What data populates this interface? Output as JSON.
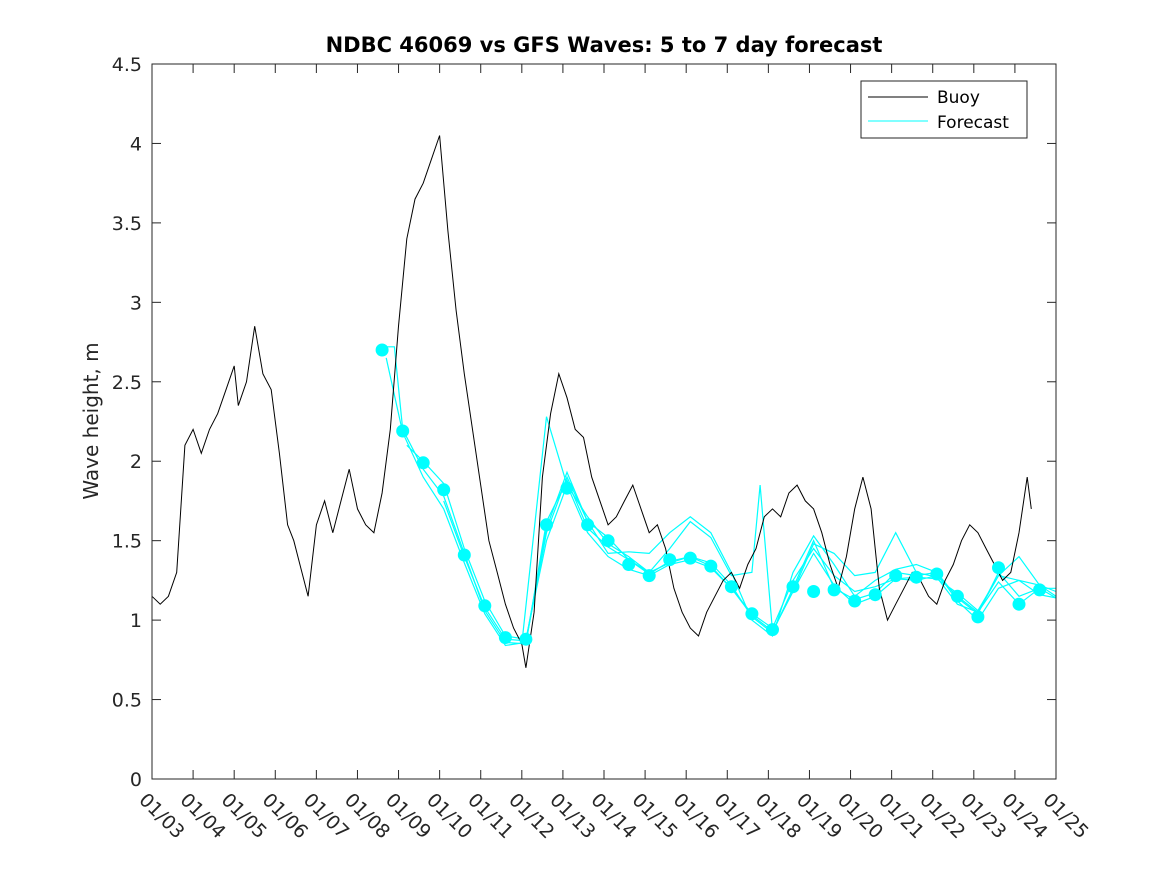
{
  "chart_data": {
    "type": "line",
    "title": "NDBC 46069 vs GFS Waves: 5 to 7 day forecast",
    "xlabel": "",
    "ylabel": "Wave height, m",
    "xlim": [
      0,
      22
    ],
    "ylim": [
      0,
      4.5
    ],
    "x_tick_values": [
      0,
      1,
      2,
      3,
      4,
      5,
      6,
      7,
      8,
      9,
      10,
      11,
      12,
      13,
      14,
      15,
      16,
      17,
      18,
      19,
      20,
      21,
      22
    ],
    "x_tick_labels": [
      "01/03",
      "01/04",
      "01/05",
      "01/06",
      "01/07",
      "01/08",
      "01/09",
      "01/10",
      "01/11",
      "01/12",
      "01/13",
      "01/14",
      "01/15",
      "01/16",
      "01/17",
      "01/18",
      "01/19",
      "01/20",
      "01/21",
      "01/22",
      "01/23",
      "01/24",
      "01/25"
    ],
    "y_tick_values": [
      0,
      0.5,
      1,
      1.5,
      2,
      2.5,
      3,
      3.5,
      4,
      4.5
    ],
    "y_tick_labels": [
      "0",
      "0.5",
      "1",
      "1.5",
      "2",
      "2.5",
      "3",
      "3.5",
      "4",
      "4.5"
    ],
    "legend": {
      "position": "top-right",
      "entries": [
        "Buoy",
        "Forecast"
      ]
    },
    "colors": {
      "buoy": "#000000",
      "forecast": "#00ffff",
      "axes": "#262626"
    },
    "buoy": {
      "name": "Buoy",
      "x": [
        0,
        0.2,
        0.4,
        0.6,
        0.8,
        1.0,
        1.2,
        1.4,
        1.6,
        1.8,
        2.0,
        2.1,
        2.3,
        2.5,
        2.7,
        2.9,
        3.1,
        3.3,
        3.45,
        3.6,
        3.8,
        4.0,
        4.2,
        4.4,
        4.6,
        4.8,
        5.0,
        5.2,
        5.4,
        5.6,
        5.8,
        6.0,
        6.2,
        6.4,
        6.6,
        6.8,
        7.0,
        7.2,
        7.4,
        7.6,
        7.8,
        8.0,
        8.2,
        8.4,
        8.6,
        8.8,
        9.0,
        9.1,
        9.3,
        9.5,
        9.7,
        9.9,
        10.1,
        10.3,
        10.5,
        10.7,
        10.9,
        11.1,
        11.3,
        11.5,
        11.7,
        11.9,
        12.1,
        12.3,
        12.5,
        12.7,
        12.9,
        13.1,
        13.3,
        13.5,
        13.7,
        13.9,
        14.1,
        14.3,
        14.5,
        14.7,
        14.9,
        15.1,
        15.3,
        15.5,
        15.7,
        15.9,
        16.1,
        16.3,
        16.5,
        16.7,
        16.9,
        17.1,
        17.3,
        17.5,
        17.7,
        17.9,
        18.1,
        18.3,
        18.5,
        18.7,
        18.9,
        19.1,
        19.3,
        19.5,
        19.7,
        19.9,
        20.1,
        20.3,
        20.5,
        20.7,
        20.9,
        21.1,
        21.3,
        21.4
      ],
      "values": [
        1.15,
        1.1,
        1.15,
        1.3,
        2.1,
        2.2,
        2.05,
        2.2,
        2.3,
        2.45,
        2.6,
        2.35,
        2.5,
        2.85,
        2.55,
        2.45,
        2.05,
        1.6,
        1.5,
        1.35,
        1.15,
        1.6,
        1.75,
        1.55,
        1.75,
        1.95,
        1.7,
        1.6,
        1.55,
        1.8,
        2.2,
        2.85,
        3.4,
        3.65,
        3.75,
        3.9,
        4.05,
        3.45,
        2.95,
        2.55,
        2.2,
        1.85,
        1.5,
        1.3,
        1.1,
        0.95,
        0.85,
        0.7,
        1.05,
        1.9,
        2.3,
        2.55,
        2.4,
        2.2,
        2.15,
        1.9,
        1.75,
        1.6,
        1.65,
        1.75,
        1.85,
        1.7,
        1.55,
        1.6,
        1.45,
        1.2,
        1.05,
        0.95,
        0.9,
        1.05,
        1.15,
        1.25,
        1.3,
        1.2,
        1.35,
        1.45,
        1.65,
        1.7,
        1.65,
        1.8,
        1.85,
        1.75,
        1.7,
        1.55,
        1.35,
        1.2,
        1.4,
        1.7,
        1.9,
        1.7,
        1.2,
        1.0,
        1.1,
        1.2,
        1.3,
        1.25,
        1.15,
        1.1,
        1.25,
        1.35,
        1.5,
        1.6,
        1.55,
        1.45,
        1.35,
        1.25,
        1.3,
        1.55,
        1.9,
        1.7
      ]
    },
    "forecast_markers": {
      "name": "Forecast",
      "x": [
        5.6,
        6.1,
        6.6,
        7.1,
        7.6,
        8.1,
        8.6,
        9.1,
        9.6,
        10.1,
        10.6,
        11.1,
        11.6,
        12.1,
        12.6,
        13.1,
        13.6,
        14.1,
        14.6,
        15.1,
        15.6,
        16.1,
        16.6,
        17.1,
        17.6,
        18.1,
        18.6,
        19.1,
        19.6,
        20.1,
        20.6,
        21.1,
        21.6
      ],
      "values": [
        2.7,
        2.19,
        1.99,
        1.82,
        1.41,
        1.09,
        0.89,
        0.88,
        1.6,
        1.83,
        1.6,
        1.5,
        1.35,
        1.28,
        1.38,
        1.39,
        1.34,
        1.21,
        1.04,
        0.94,
        1.21,
        1.18,
        1.19,
        1.12,
        1.16,
        1.28,
        1.27,
        1.29,
        1.15,
        1.02,
        1.33,
        1.1,
        1.19
      ]
    },
    "forecast_lines": [
      {
        "name": "Forecast",
        "x": [
          5.6,
          5.9,
          6.1,
          6.6,
          7.1,
          7.6,
          8.1,
          8.6,
          9.1,
          9.6,
          10.1,
          10.6,
          11.1,
          11.6,
          12.1,
          12.6,
          13.1,
          13.6,
          14.1,
          14.6,
          15.1,
          15.6,
          16.1,
          16.6,
          17.1,
          17.6,
          18.1,
          18.6,
          19.1,
          19.6,
          20.1,
          20.6,
          21.1,
          21.6,
          22.0
        ],
        "values": [
          2.72,
          2.72,
          2.2,
          1.95,
          1.78,
          1.42,
          1.06,
          0.86,
          0.85,
          1.62,
          1.88,
          1.58,
          1.46,
          1.38,
          1.3,
          1.36,
          1.4,
          1.36,
          1.22,
          1.02,
          0.92,
          1.2,
          1.5,
          1.2,
          1.13,
          1.17,
          1.3,
          1.28,
          1.3,
          1.14,
          1.04,
          1.3,
          1.15,
          1.2,
          1.14
        ]
      },
      {
        "name": "Forecast",
        "x": [
          5.7,
          6.1,
          6.6,
          7.1,
          7.6,
          8.1,
          8.6,
          9.1,
          9.6,
          10.1,
          10.6,
          11.1,
          11.6,
          12.1,
          12.6,
          13.1,
          13.6,
          14.1,
          14.6,
          15.1,
          15.6,
          16.1,
          16.6,
          17.1,
          17.6,
          18.1,
          18.6,
          19.1,
          19.6,
          20.1,
          20.6,
          21.1,
          21.6,
          22.0
        ],
        "values": [
          2.65,
          2.18,
          1.9,
          1.7,
          1.36,
          1.04,
          0.84,
          0.86,
          1.55,
          1.9,
          1.62,
          1.42,
          1.43,
          1.42,
          1.55,
          1.65,
          1.55,
          1.3,
          1.0,
          0.9,
          1.3,
          1.53,
          1.35,
          1.15,
          1.25,
          1.32,
          1.35,
          1.3,
          1.12,
          1.0,
          1.2,
          1.25,
          1.22,
          1.18
        ]
      },
      {
        "name": "Forecast",
        "x": [
          6.2,
          6.6,
          7.1,
          7.6,
          8.1,
          8.6,
          9.1,
          9.6,
          10.1,
          10.6,
          11.1,
          11.6,
          12.1,
          12.6,
          13.1,
          13.6,
          14.1,
          14.6,
          14.8,
          15.1,
          15.6,
          16.1,
          16.6,
          17.1,
          17.6,
          18.1,
          18.6,
          19.1,
          19.6,
          20.1,
          20.6,
          21.1,
          21.6,
          22.0
        ],
        "values": [
          2.1,
          2.0,
          1.86,
          1.45,
          1.12,
          0.9,
          0.88,
          1.5,
          1.85,
          1.65,
          1.48,
          1.4,
          1.3,
          1.45,
          1.62,
          1.52,
          1.28,
          1.3,
          1.85,
          0.93,
          1.18,
          1.48,
          1.42,
          1.28,
          1.3,
          1.55,
          1.3,
          1.27,
          1.1,
          1.05,
          1.28,
          1.4,
          1.22,
          1.15
        ]
      },
      {
        "name": "Forecast",
        "x": [
          7.1,
          7.6,
          8.1,
          8.6,
          9.1,
          9.6,
          10.1,
          10.6,
          11.1,
          11.6,
          12.1,
          12.6,
          13.1,
          13.6,
          14.1,
          14.6,
          15.1,
          15.6,
          16.1,
          16.6,
          17.1,
          17.6,
          18.1,
          18.6,
          19.1,
          19.6,
          20.1,
          20.6,
          21.1,
          21.6,
          22.0
        ],
        "values": [
          1.75,
          1.4,
          1.08,
          0.88,
          0.87,
          1.58,
          1.93,
          1.62,
          1.52,
          1.38,
          1.29,
          1.37,
          1.4,
          1.34,
          1.2,
          1.04,
          0.95,
          1.25,
          1.45,
          1.28,
          1.18,
          1.21,
          1.26,
          1.27,
          1.26,
          1.17,
          1.06,
          1.28,
          1.25,
          1.16,
          1.14
        ]
      },
      {
        "name": "Forecast",
        "x": [
          9.0,
          9.6,
          10.1,
          10.6,
          11.1,
          11.6,
          12.1,
          12.6,
          13.1,
          13.6,
          14.1,
          14.6,
          15.1,
          15.6,
          16.1,
          16.6,
          17.1,
          17.6,
          18.1,
          18.6,
          19.1,
          19.6,
          20.1,
          20.6,
          21.1,
          21.6,
          22.0
        ],
        "values": [
          0.85,
          2.28,
          1.85,
          1.55,
          1.4,
          1.32,
          1.28,
          1.35,
          1.38,
          1.33,
          1.2,
          1.03,
          0.93,
          1.18,
          1.42,
          1.22,
          1.1,
          1.15,
          1.26,
          1.25,
          1.28,
          1.15,
          1.05,
          1.24,
          1.1,
          1.2,
          1.2
        ]
      }
    ]
  }
}
